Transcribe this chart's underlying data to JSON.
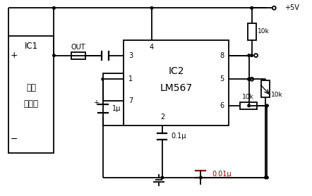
{
  "bg_color": "#ffffff",
  "line_color": "#000000",
  "red_color": "#8B0000",
  "ic1_label1": "IC1",
  "ic1_label2": "红外",
  "ic1_label3": "接收头",
  "ic2_label1": "IC2",
  "ic2_label2": "LM567",
  "plus5v": "+5V",
  "out_label": "OUT",
  "r1_label": "10k",
  "r2_label": "10k",
  "r3_label": "10k",
  "c1_label": "1μ",
  "c2_label": "0.1μ",
  "c3_label": "0.01μ"
}
